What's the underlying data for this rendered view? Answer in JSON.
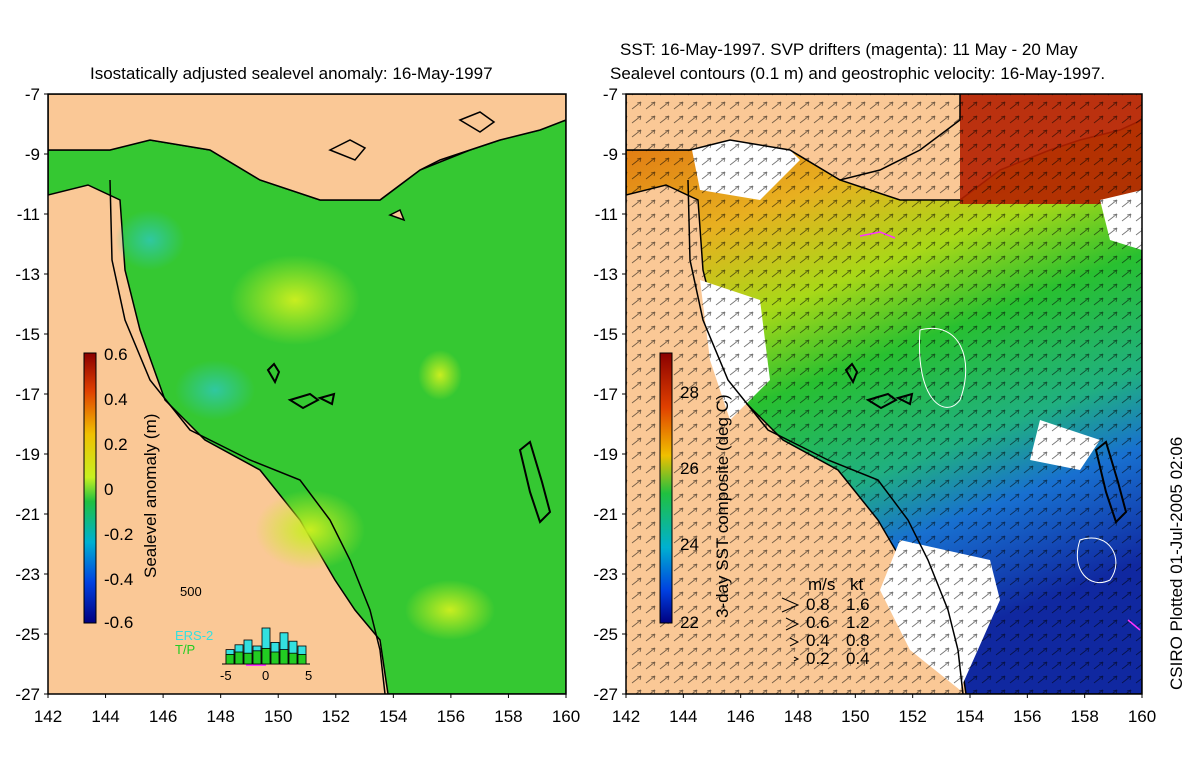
{
  "left_panel": {
    "title": "Isostatically adjusted sealevel anomaly: 16-May-1997",
    "colorbar_label": "Sealevel anomaly (m)",
    "colorbar_ticks": [
      "0.6",
      "0.4",
      "0.2",
      "0",
      "-0.2",
      "-0.4",
      "-0.6"
    ],
    "inset": {
      "top_label": "500",
      "series_1": "ERS-2",
      "series_2": "T/P",
      "x_ticks": [
        "-5",
        "0",
        "5"
      ],
      "ers2_counts": [
        120,
        160,
        200,
        150,
        300,
        180,
        260,
        190,
        150
      ],
      "tp_counts": [
        80,
        100,
        90,
        110,
        130,
        100,
        120,
        90,
        80
      ],
      "colors": {
        "ers2": "#33e0e0",
        "tp": "#22cc22",
        "marker": "#ff33ff"
      }
    }
  },
  "right_panel": {
    "title_line1": "SST: 16-May-1997. SVP drifters (magenta): 11 May - 20 May",
    "title_line2": "Sealevel contours (0.1 m) and geostrophic velocity: 16-May-1997.",
    "colorbar_label": "3-day SST composite (deg C)",
    "colorbar_ticks": [
      "28",
      "26",
      "24",
      "22"
    ],
    "velocity_legend": {
      "header_ms": "m/s",
      "header_kt": "kt",
      "rows": [
        {
          "ms": "0.8",
          "kt": "1.6"
        },
        {
          "ms": "0.6",
          "kt": "1.2"
        },
        {
          "ms": "0.4",
          "kt": "0.8"
        },
        {
          "ms": "0.2",
          "kt": "0.4"
        }
      ]
    }
  },
  "axes": {
    "y_ticks": [
      "-7",
      "-9",
      "-11",
      "-13",
      "-15",
      "-17",
      "-19",
      "-21",
      "-23",
      "-25",
      "-27"
    ],
    "x_ticks": [
      "142",
      "144",
      "146",
      "148",
      "150",
      "152",
      "154",
      "156",
      "158",
      "160"
    ],
    "lon_range": [
      142,
      160
    ],
    "lat_range": [
      -27,
      -7
    ]
  },
  "side_label": "CSIRO Plotted 01-Jul-2005 02:06",
  "colors": {
    "land": "#fac896",
    "ocean_green": "#35c832",
    "sst_warm": "#b42000",
    "sst_cool": "#1a5ad0"
  }
}
